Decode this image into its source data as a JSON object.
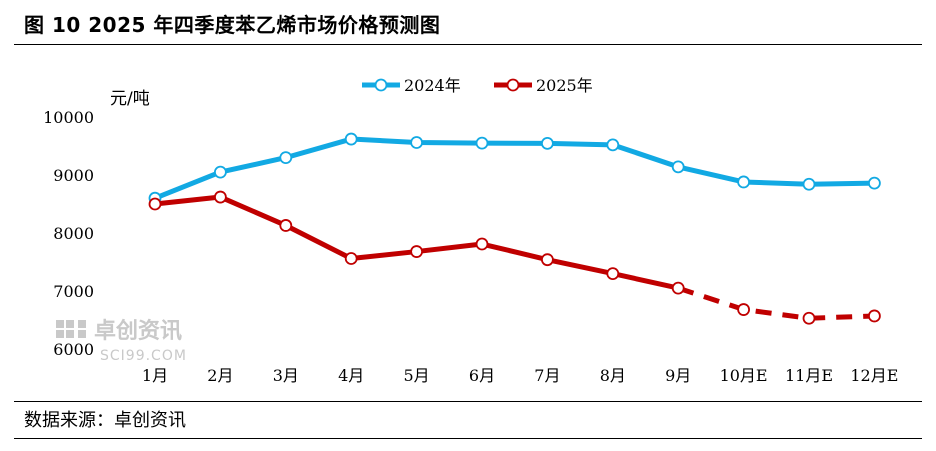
{
  "title": "图 10 2025 年四季度苯乙烯市场价格预测图",
  "source": "数据来源：卓创资讯",
  "watermark": {
    "name": "卓创资讯",
    "url": "SCI99.COM"
  },
  "chart_data": {
    "type": "line",
    "ylabel": "元/吨",
    "ylim": [
      6000,
      10000
    ],
    "yticks": [
      6000,
      7000,
      8000,
      9000,
      10000
    ],
    "categories": [
      "1月",
      "2月",
      "3月",
      "4月",
      "5月",
      "6月",
      "7月",
      "8月",
      "9月",
      "10月E",
      "11月E",
      "12月E"
    ],
    "legend_position": "top-center",
    "grid": false,
    "series": [
      {
        "name": "2024年",
        "color": "#12a9e3",
        "values": [
          8600,
          9050,
          9300,
          9620,
          9560,
          9550,
          9545,
          9520,
          9140,
          8880,
          8840,
          8860
        ]
      },
      {
        "name": "2025年",
        "color": "#c00000",
        "forecast_from_index": 8,
        "values": [
          8500,
          8620,
          8130,
          7560,
          7680,
          7810,
          7540,
          7300,
          7050,
          6680,
          6530,
          6570
        ]
      }
    ]
  }
}
